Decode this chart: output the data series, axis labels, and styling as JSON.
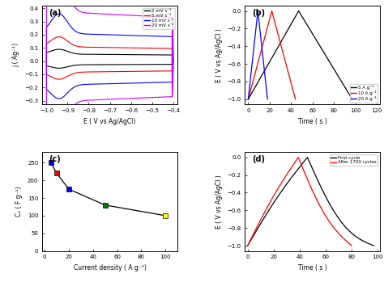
{
  "panel_a": {
    "title": "(a)",
    "xlabel": "E ( V vs Ag/AgCl)",
    "ylabel": "j ( Ag⁻¹)",
    "xlim": [
      -1.02,
      -0.38
    ],
    "ylim": [
      -0.33,
      0.42
    ],
    "xticks": [
      -1.0,
      -0.9,
      -0.8,
      -0.7,
      -0.6,
      -0.5,
      -0.4
    ],
    "yticks": [
      -0.3,
      -0.2,
      -0.1,
      0.0,
      0.1,
      0.2,
      0.3,
      0.4
    ],
    "curves": [
      {
        "color": "black",
        "label": "2 mV s⁻¹",
        "jmax": 0.046,
        "jmin": -0.025,
        "spike": 0.05
      },
      {
        "color": "red",
        "label": "5 mV s⁻¹",
        "jmax": 0.095,
        "jmin": -0.075,
        "spike": 0.1
      },
      {
        "color": "blue",
        "label": "10 mV s⁻¹",
        "jmax": 0.185,
        "jmin": -0.16,
        "spike": 0.19
      },
      {
        "color": "#CC00FF",
        "label": "20 mV s⁻¹",
        "jmax": 0.33,
        "jmin": -0.27,
        "spike": 0.33
      }
    ]
  },
  "panel_b": {
    "title": "(b)",
    "xlabel": "Time ( s )",
    "ylabel": "E ( V vs Ag/AgCl )",
    "xlim": [
      -3,
      123
    ],
    "ylim": [
      -1.06,
      0.06
    ],
    "xticks": [
      0,
      20,
      40,
      60,
      80,
      100,
      120
    ],
    "yticks": [
      -1.0,
      -0.8,
      -0.6,
      -0.4,
      -0.2,
      0.0
    ],
    "curves": [
      {
        "color": "black",
        "label": "5 A g⁻¹",
        "t_start": 0,
        "t_half": 47,
        "t_end": 97
      },
      {
        "color": "red",
        "label": "10 A g⁻¹",
        "t_start": 0,
        "t_half": 22,
        "t_end": 44
      },
      {
        "color": "blue",
        "label": "20 A g⁻¹",
        "t_start": 0,
        "t_half": 9,
        "t_end": 18
      }
    ]
  },
  "panel_c": {
    "title": "(c)",
    "xlabel": "Current density ( A g⁻¹)",
    "ylabel": "Cₛ ( F g⁻¹)",
    "xlim": [
      -2,
      110
    ],
    "ylim": [
      0,
      280
    ],
    "xticks": [
      0,
      20,
      40,
      60,
      80,
      100
    ],
    "yticks": [
      0,
      50,
      100,
      150,
      200,
      250
    ],
    "x_data": [
      5,
      10,
      20,
      50,
      100
    ],
    "y_data": [
      250,
      220,
      175,
      130,
      100
    ],
    "marker_colors": [
      "blue",
      "red",
      "blue",
      "green",
      "yellow"
    ]
  },
  "panel_d": {
    "title": "(d)",
    "xlabel": "Time ( s )",
    "ylabel": "E ( V vs Ag/AgCl )",
    "xlim": [
      -2,
      102
    ],
    "ylim": [
      -1.06,
      0.06
    ],
    "xticks": [
      0,
      20,
      40,
      60,
      80,
      100
    ],
    "yticks": [
      -1.0,
      -0.8,
      -0.6,
      -0.4,
      -0.2,
      0.0
    ],
    "curves": [
      {
        "color": "black",
        "label": "First cycle",
        "t_half": 46,
        "t_end": 97,
        "charge_curve": 0.05,
        "discharge_curve": 0.22
      },
      {
        "color": "red",
        "label": "After 1700 cycles",
        "t_half": 39,
        "t_end": 80,
        "charge_curve": 0.05,
        "discharge_curve": 0.15
      }
    ]
  }
}
